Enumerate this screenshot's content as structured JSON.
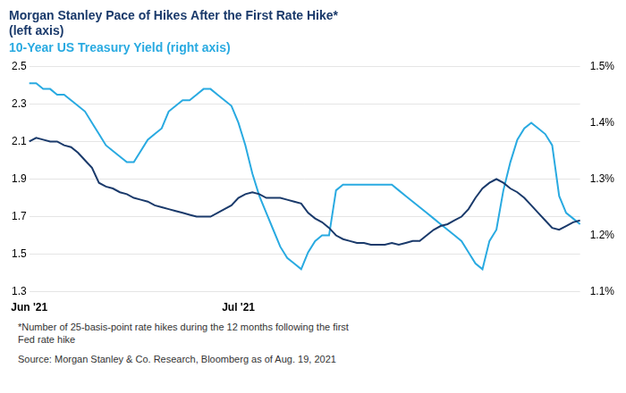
{
  "chart_data": {
    "type": "line",
    "title": [
      "Morgan Stanley Pace of Hikes After the First Rate Hike*",
      "(left axis)"
    ],
    "subtitle": "10-Year US Treasury Yield (right axis)",
    "annotations": [
      "*Number of 25-basis-point rate hikes during the 12 months following the first\nFed rate hike",
      "Source: Morgan Stanley & Co. Research, Bloomberg as of Aug. 19, 2021"
    ],
    "categories": [
      "Jun '21",
      null,
      null,
      null,
      null,
      null,
      null,
      null,
      null,
      null,
      null,
      null,
      null,
      null,
      null,
      null,
      null,
      null,
      null,
      null,
      null,
      null,
      null,
      null,
      null,
      null,
      null,
      null,
      null,
      null,
      "Jul '21",
      null,
      null,
      null,
      null,
      null,
      null,
      null,
      null,
      null,
      null,
      null,
      null,
      null,
      null,
      null,
      null,
      null,
      null,
      null,
      null,
      null,
      null,
      null,
      null,
      null,
      null,
      null,
      null,
      null,
      null,
      null,
      null,
      null,
      null,
      null,
      null,
      null,
      null,
      null,
      null,
      null,
      null,
      null,
      null,
      null,
      null,
      null,
      null,
      null
    ],
    "series": [
      {
        "color": "#1a3a6b",
        "values": [
          2.1,
          2.12,
          2.11,
          2.1,
          2.1,
          2.08,
          2.07,
          2.04,
          2.0,
          1.96,
          1.88,
          1.86,
          1.85,
          1.83,
          1.82,
          1.8,
          1.79,
          1.78,
          1.76,
          1.75,
          1.74,
          1.73,
          1.72,
          1.71,
          1.7,
          1.7,
          1.7,
          1.72,
          1.74,
          1.76,
          1.8,
          1.82,
          1.83,
          1.82,
          1.8,
          1.8,
          1.8,
          1.79,
          1.78,
          1.77,
          1.72,
          1.69,
          1.67,
          1.64,
          1.6,
          1.58,
          1.57,
          1.56,
          1.56,
          1.55,
          1.55,
          1.55,
          1.56,
          1.55,
          1.56,
          1.57,
          1.57,
          1.6,
          1.63,
          1.65,
          1.66,
          1.68,
          1.7,
          1.74,
          1.8,
          1.85,
          1.88,
          1.9,
          1.88,
          1.85,
          1.83,
          1.8,
          1.76,
          1.72,
          1.68,
          1.64,
          1.63,
          1.65,
          1.67,
          1.68
        ]
      },
      {
        "color": "#29aae1",
        "axis": "y2",
        "values": [
          1.47,
          1.47,
          1.46,
          1.46,
          1.45,
          1.45,
          1.44,
          1.43,
          1.42,
          1.4,
          1.38,
          1.36,
          1.35,
          1.34,
          1.33,
          1.33,
          1.35,
          1.37,
          1.38,
          1.39,
          1.42,
          1.43,
          1.44,
          1.44,
          1.45,
          1.46,
          1.46,
          1.45,
          1.44,
          1.43,
          1.4,
          1.36,
          1.31,
          1.27,
          1.24,
          1.21,
          1.18,
          1.16,
          1.15,
          1.14,
          1.17,
          1.19,
          1.2,
          1.2,
          1.28,
          1.29,
          1.29,
          1.29,
          1.29,
          1.29,
          1.29,
          1.29,
          1.29,
          1.28,
          1.27,
          1.26,
          1.25,
          1.24,
          1.23,
          1.22,
          1.21,
          1.2,
          1.19,
          1.17,
          1.15,
          1.14,
          1.19,
          1.21,
          1.28,
          1.33,
          1.37,
          1.39,
          1.4,
          1.39,
          1.38,
          1.36,
          1.27,
          1.24,
          1.23,
          1.22
        ]
      }
    ],
    "ylim": [
      1.3,
      2.5
    ],
    "yticks": [
      1.3,
      1.5,
      1.7,
      1.9,
      2.1,
      2.3,
      2.5
    ],
    "y2lim": [
      1.1,
      1.5
    ],
    "y2ticks": [
      {
        "value": 1.1,
        "label": "1.1%"
      },
      {
        "value": 1.2,
        "label": "1.2%"
      },
      {
        "value": 1.3,
        "label": "1.3%"
      },
      {
        "value": 1.4,
        "label": "1.4%"
      },
      {
        "value": 1.5,
        "label": "1.5%"
      }
    ],
    "grid": true
  }
}
